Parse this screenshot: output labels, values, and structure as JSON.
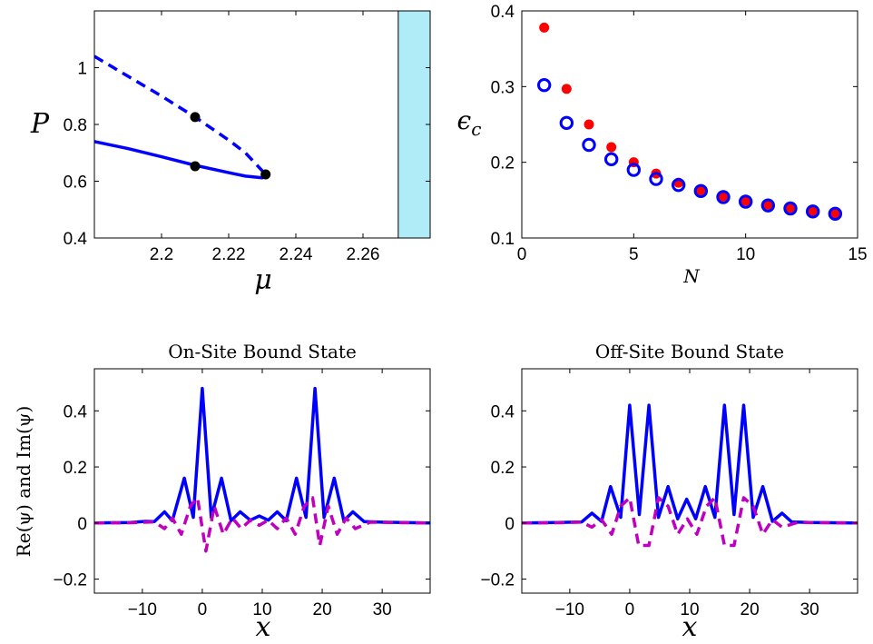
{
  "colors": {
    "blue": "#0000ff",
    "magenta": "#bf00bf",
    "red": "#ff0000",
    "black": "#000000",
    "band": "#b0ebf8"
  },
  "chart_data": [
    {
      "type": "line",
      "panel": "top-left",
      "title": "",
      "xlabel": "μ",
      "ylabel": "P",
      "xlim": [
        2.18,
        2.28
      ],
      "ylim": [
        0.4,
        1.2
      ],
      "xticks": [
        "2.2",
        "2.22",
        "2.24",
        "2.26"
      ],
      "yticks": [
        "0.4",
        "0.6",
        "0.8",
        "1"
      ],
      "grid": false,
      "series": [
        {
          "style": "solid",
          "color": "#0000ff",
          "x": [
            2.18,
            2.19,
            2.2,
            2.21,
            2.22,
            2.225,
            2.23,
            2.231
          ],
          "y": [
            0.74,
            0.715,
            0.686,
            0.656,
            0.63,
            0.618,
            0.612,
            0.624
          ]
        },
        {
          "style": "dashed",
          "color": "#0000ff",
          "x": [
            2.18,
            2.19,
            2.2,
            2.21,
            2.22,
            2.225,
            2.231
          ],
          "y": [
            1.04,
            0.97,
            0.9,
            0.826,
            0.745,
            0.7,
            0.624
          ]
        }
      ],
      "points": [
        {
          "x": 2.21,
          "y": 0.826
        },
        {
          "x": 2.21,
          "y": 0.653
        },
        {
          "x": 2.231,
          "y": 0.624
        }
      ],
      "shaded_region": {
        "x_from": 2.2705,
        "x_to": 2.28
      },
      "vertical_line_x": 2.2705
    },
    {
      "type": "scatter",
      "panel": "top-right",
      "title": "",
      "xlabel": "N",
      "ylabel": "ε_c",
      "xlim": [
        0,
        15
      ],
      "ylim": [
        0.1,
        0.4
      ],
      "xticks": [
        "0",
        "5",
        "10",
        "15"
      ],
      "yticks": [
        "0.1",
        "0.2",
        "0.3",
        "0.4"
      ],
      "grid": false,
      "series": [
        {
          "marker": "filled-circle",
          "color": "#ff0000",
          "x": [
            1,
            2,
            3,
            4,
            5,
            6,
            7,
            8,
            9,
            10,
            11,
            12,
            13,
            14
          ],
          "y": [
            0.378,
            0.297,
            0.25,
            0.22,
            0.2,
            0.185,
            0.173,
            0.163,
            0.155,
            0.149,
            0.144,
            0.14,
            0.136,
            0.133
          ]
        },
        {
          "marker": "open-circle",
          "color": "#0000ff",
          "x": [
            1,
            2,
            3,
            4,
            5,
            6,
            7,
            8,
            9,
            10,
            11,
            12,
            13,
            14
          ],
          "y": [
            0.302,
            0.252,
            0.223,
            0.204,
            0.19,
            0.178,
            0.17,
            0.162,
            0.154,
            0.148,
            0.143,
            0.139,
            0.135,
            0.132
          ]
        }
      ]
    },
    {
      "type": "line",
      "panel": "bottom-left",
      "title": "On-Site Bound State",
      "xlabel": "x",
      "ylabel": "Re(ψ) and Im(ψ)",
      "xlim": [
        -18,
        38
      ],
      "ylim": [
        -0.25,
        0.55
      ],
      "xticks": [
        "−10",
        "0",
        "10",
        "20",
        "30"
      ],
      "yticks": [
        "−0.2",
        "0",
        "0.2",
        "0.4"
      ],
      "grid": false,
      "series": [
        {
          "style": "solid",
          "color": "#0000ff",
          "x": [
            -18,
            -12,
            -9.5,
            -8,
            -6.3,
            -5,
            -3,
            -1.5,
            0,
            1.5,
            3.2,
            4.8,
            6.3,
            8,
            9.5,
            11,
            12.5,
            14,
            15.7,
            17.3,
            18.8,
            20.3,
            22,
            23.6,
            25.1,
            27,
            30,
            38
          ],
          "y": [
            0,
            0.002,
            0.006,
            0.005,
            0.04,
            0.008,
            0.16,
            0.02,
            0.48,
            0.02,
            0.16,
            0.008,
            0.04,
            0.01,
            0.025,
            0.01,
            0.04,
            0.008,
            0.16,
            0.02,
            0.48,
            0.02,
            0.16,
            0.008,
            0.04,
            0.005,
            0.003,
            0
          ]
        },
        {
          "style": "dashed",
          "color": "#bf00bf",
          "x": [
            -18,
            -12,
            -8,
            -6.3,
            -5,
            -3.5,
            -2,
            -0.8,
            0.6,
            2,
            3.5,
            5,
            6.5,
            8,
            9.5,
            11,
            12.5,
            14,
            15.5,
            17,
            18.4,
            19.6,
            21,
            22.5,
            24,
            25.5,
            28,
            38
          ],
          "y": [
            0,
            0.001,
            0.004,
            -0.02,
            0.018,
            -0.04,
            0.06,
            0.09,
            -0.1,
            0.06,
            -0.04,
            0.018,
            -0.02,
            0.01,
            -0.008,
            0.01,
            -0.02,
            0.018,
            -0.04,
            0.06,
            0.09,
            -0.08,
            0.06,
            -0.04,
            0.018,
            -0.02,
            0.003,
            0
          ]
        }
      ]
    },
    {
      "type": "line",
      "panel": "bottom-right",
      "title": "Off-Site Bound State",
      "xlabel": "x",
      "ylabel": "",
      "xlim": [
        -18,
        38
      ],
      "ylim": [
        -0.25,
        0.55
      ],
      "xticks": [
        "−10",
        "0",
        "10",
        "20",
        "30"
      ],
      "yticks": [
        "−0.2",
        "0",
        "0.2",
        "0.4"
      ],
      "grid": false,
      "series": [
        {
          "style": "solid",
          "color": "#0000ff",
          "x": [
            -18,
            -12,
            -8,
            -6.3,
            -4.7,
            -3.2,
            -1.5,
            0,
            1.6,
            3.2,
            4.8,
            6.4,
            8,
            9.5,
            11,
            12.6,
            14.2,
            15.8,
            17.4,
            19,
            20.6,
            22.2,
            23.8,
            25.4,
            27,
            30,
            38
          ],
          "y": [
            0,
            0.002,
            0.004,
            0.035,
            0.006,
            0.13,
            0.02,
            0.42,
            0.03,
            0.42,
            0.02,
            0.13,
            0.015,
            0.085,
            0.015,
            0.13,
            0.02,
            0.42,
            0.03,
            0.42,
            0.02,
            0.13,
            0.006,
            0.035,
            0.004,
            0.002,
            0
          ]
        },
        {
          "style": "dashed",
          "color": "#bf00bf",
          "x": [
            -18,
            -12,
            -8,
            -6.3,
            -4.7,
            -3,
            -1.5,
            0,
            1.5,
            3.2,
            4.8,
            6.4,
            8,
            9.6,
            11.2,
            12.8,
            14.2,
            15.8,
            17.4,
            19,
            20.6,
            22.2,
            23.8,
            25.4,
            28,
            38
          ],
          "y": [
            0,
            0.001,
            0.003,
            -0.015,
            0.012,
            -0.04,
            0.06,
            0.09,
            -0.08,
            -0.08,
            0.09,
            0.06,
            -0.04,
            0.015,
            -0.04,
            0.06,
            0.09,
            -0.08,
            -0.08,
            0.09,
            0.06,
            -0.04,
            0.012,
            -0.015,
            0.002,
            0
          ]
        }
      ]
    }
  ]
}
